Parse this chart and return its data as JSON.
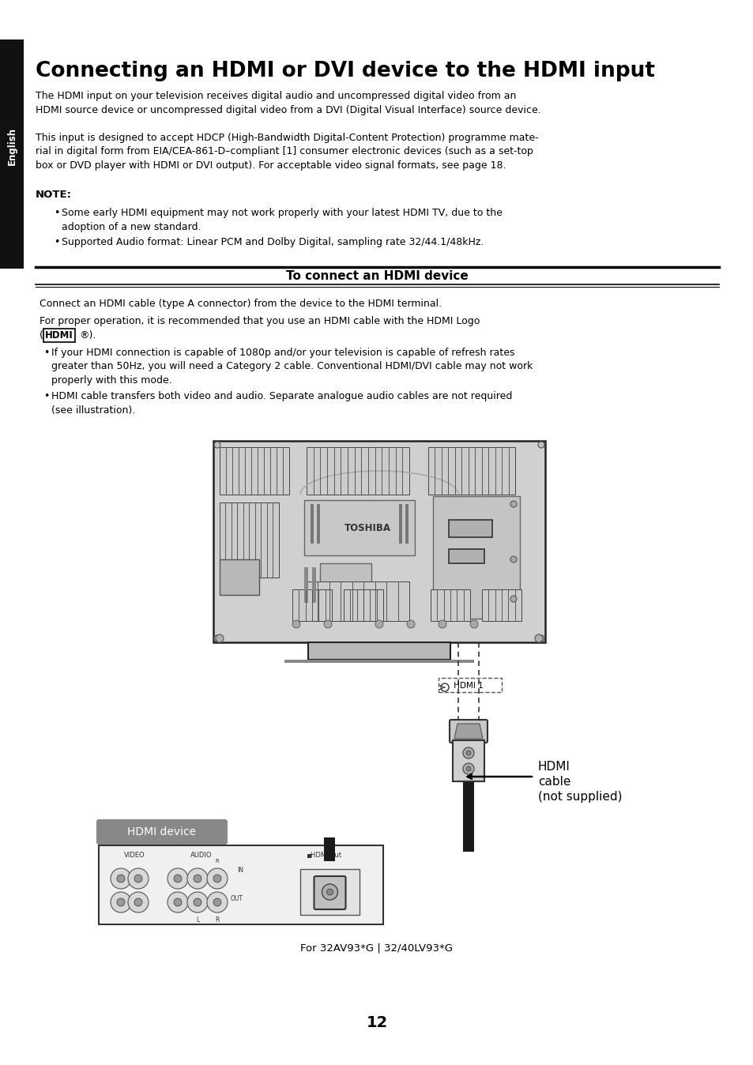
{
  "page_bg": "#ffffff",
  "sidebar_bg": "#111111",
  "sidebar_text": "English",
  "sidebar_text_color": "#ffffff",
  "title": "Connecting an HDMI or DVI device to the HDMI input",
  "title_fontsize": 19,
  "para1": "The HDMI input on your television receives digital audio and uncompressed digital video from an\nHDMI source device or uncompressed digital video from a DVI (Digital Visual Interface) source device.",
  "para2": "This input is designed to accept HDCP (High-Bandwidth Digital-Content Protection) programme mate-\nrial in digital form from EIA/CEA-861-D–compliant [1] consumer electronic devices (such as a set-top\nbox or DVD player with HDMI or DVI output). For acceptable video signal formats, see page 18.",
  "note_label": "NOTE:",
  "bullet1": "Some early HDMI equipment may not work properly with your latest HDMI TV, due to the\nadoption of a new standard.",
  "bullet2": "Supported Audio format: Linear PCM and Dolby Digital, sampling rate 32/44.1/48kHz.",
  "section_title": "To connect an HDMI device",
  "connect_para1": "Connect an HDMI cable (type A connector) from the device to the HDMI terminal.",
  "connect_para2_line1": "For proper operation, it is recommended that you use an HDMI cable with the HDMI Logo",
  "connect_para2_line2": ").",
  "connect_bullet1": "If your HDMI connection is capable of 1080p and/or your television is capable of refresh rates\ngreater than 50Hz, you will need a Category 2 cable. Conventional HDMI/DVI cable may not work\nproperly with this mode.",
  "connect_bullet2": "HDMI cable transfers both video and audio. Separate analogue audio cables are not required\n(see illustration).",
  "hdmi_device_label": "HDMI device",
  "hdmi_cable_label": "HDMI\ncable\n(not supplied)",
  "hdmi1_label": " HDMI 1",
  "caption": "For 32AV93*G | 32/40LV93*G",
  "page_number": "12",
  "body_color": "#000000",
  "label_box_color": "#888888",
  "label_text_color": "#ffffff",
  "tv_border": "#222222",
  "tv_face": "#d8d8d8",
  "vent_face": "#c0c0c0",
  "line_color": "#444444"
}
